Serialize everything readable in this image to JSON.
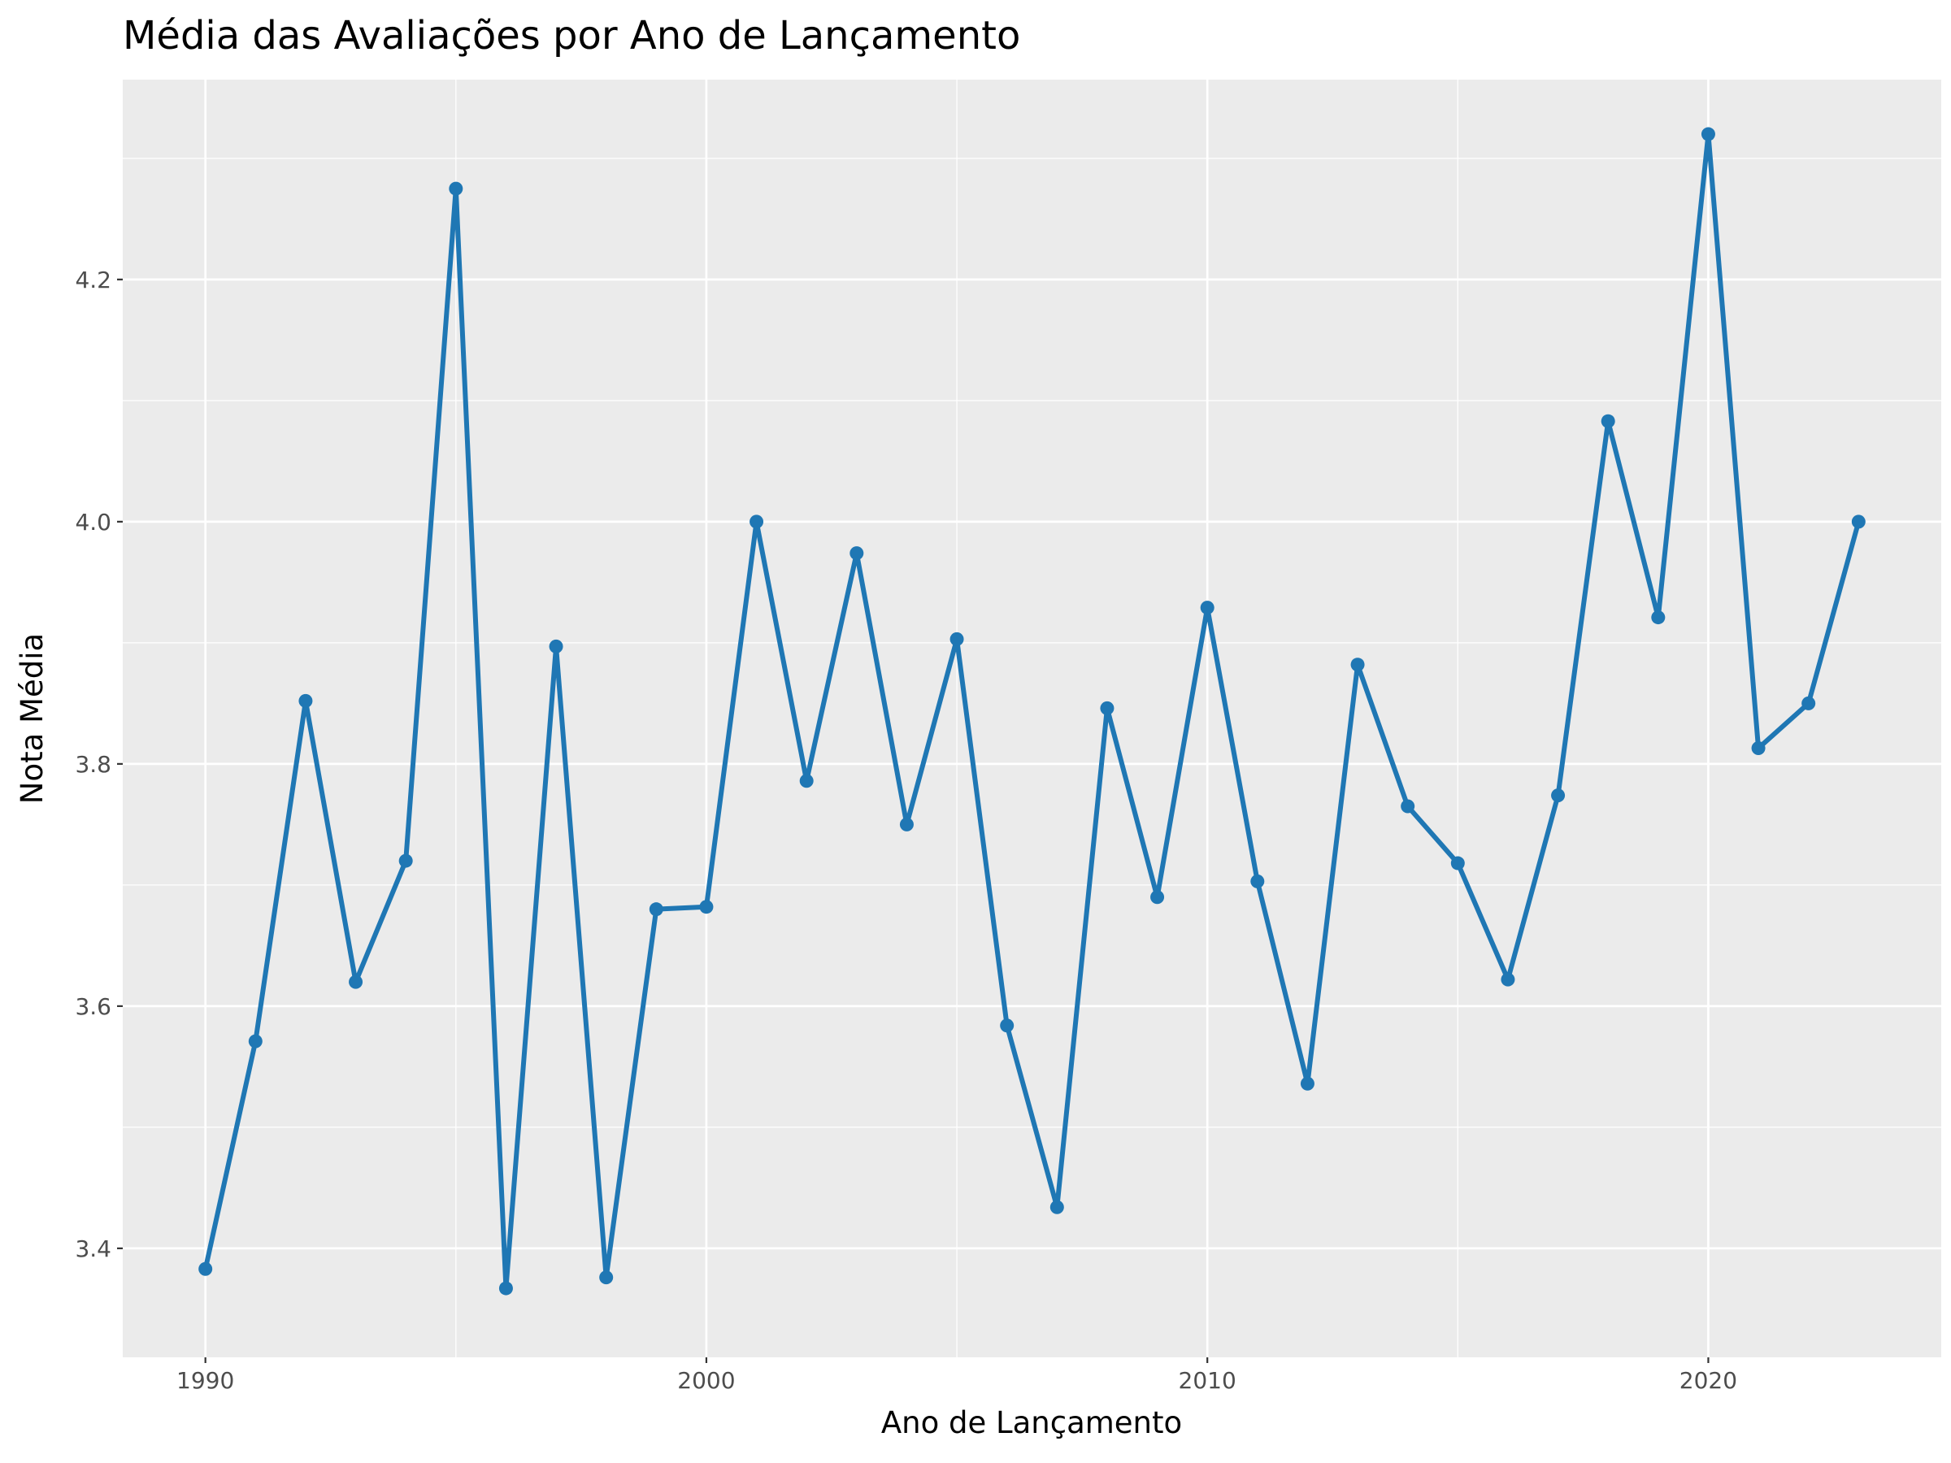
{
  "chart_data": {
    "type": "line",
    "title": "Média das Avaliações por Ano de Lançamento",
    "xlabel": "Ano de Lançamento",
    "ylabel": "Nota Média",
    "xlim": [
      1988.35,
      2024.65
    ],
    "ylim": [
      3.31,
      4.365
    ],
    "x_ticks": [
      1990,
      2000,
      2010,
      2020
    ],
    "y_ticks": [
      3.4,
      3.6,
      3.8,
      4.0,
      4.2
    ],
    "x_tick_labels": [
      "1990",
      "2000",
      "2010",
      "2020"
    ],
    "y_tick_labels": [
      "3.4",
      "3.6",
      "3.8",
      "4.0",
      "4.2"
    ],
    "grid": true,
    "panel_background": "#EBEBEB",
    "grid_color": "#FFFFFF",
    "series": [
      {
        "color": "#1F77B4",
        "x": [
          1990,
          1991,
          1992,
          1993,
          1994,
          1995,
          1996,
          1997,
          1998,
          1999,
          2000,
          2001,
          2002,
          2003,
          2004,
          2005,
          2006,
          2007,
          2008,
          2009,
          2010,
          2011,
          2012,
          2013,
          2014,
          2015,
          2016,
          2017,
          2018,
          2019,
          2020,
          2021,
          2022,
          2023
        ],
        "y": [
          3.383,
          3.571,
          3.852,
          3.62,
          3.72,
          4.275,
          3.367,
          3.897,
          3.376,
          3.68,
          3.682,
          4.0,
          3.786,
          3.974,
          3.75,
          3.903,
          3.584,
          3.434,
          3.846,
          3.69,
          3.929,
          3.703,
          3.536,
          3.882,
          3.765,
          3.718,
          3.622,
          3.774,
          4.083,
          3.921,
          4.32,
          3.813,
          3.85,
          4.0
        ]
      }
    ]
  }
}
